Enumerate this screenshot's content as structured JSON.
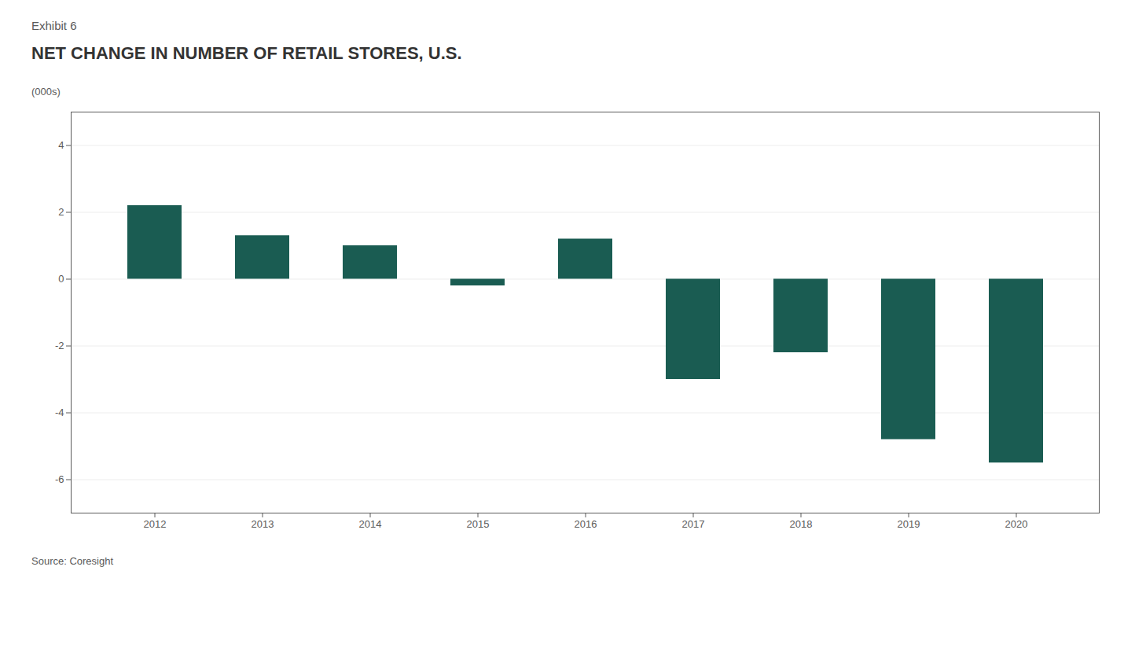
{
  "chart_data": {
    "type": "bar",
    "title": "NET CHANGE IN NUMBER OF RETAIL STORES, U.S.",
    "subtitle": "Exhibit 6",
    "ylabel": "(000s)",
    "annotations": [
      "Source: Coresight"
    ],
    "categories": [
      "2012",
      "2013",
      "2014",
      "2015",
      "2016",
      "2017",
      "2018",
      "2019",
      "2020"
    ],
    "values": [
      2.2,
      1.3,
      1.0,
      -0.2,
      1.2,
      -3.0,
      -2.2,
      -4.8,
      -5.5
    ],
    "color": "#1a5c52",
    "ylim": [
      -7,
      5
    ],
    "yticks": [
      -6,
      -4,
      -2,
      0,
      2,
      4
    ],
    "grid": true
  }
}
